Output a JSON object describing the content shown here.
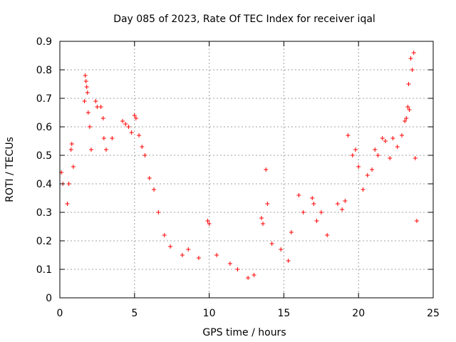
{
  "chart_data": {
    "type": "scatter",
    "title": "Day 085 of 2023, Rate Of TEC Index for receiver iqal",
    "xlabel": "GPS time / hours",
    "ylabel": "ROTI / TECUs",
    "xlim": [
      0,
      25
    ],
    "ylim": [
      0,
      0.9
    ],
    "xticks": [
      "0",
      "5",
      "10",
      "15",
      "20",
      "25"
    ],
    "yticks": [
      "0",
      "0.1",
      "0.2",
      "0.3",
      "0.4",
      "0.5",
      "0.6",
      "0.7",
      "0.8",
      "0.9"
    ],
    "grid": true,
    "legend": "none",
    "marker": "+",
    "marker_color": "#ff0000",
    "series": [
      {
        "points": [
          [
            0.1,
            0.44
          ],
          [
            0.2,
            0.4
          ],
          [
            0.5,
            0.33
          ],
          [
            0.6,
            0.4
          ],
          [
            0.75,
            0.52
          ],
          [
            0.8,
            0.54
          ],
          [
            0.9,
            0.46
          ],
          [
            1.7,
            0.78
          ],
          [
            1.75,
            0.76
          ],
          [
            1.8,
            0.74
          ],
          [
            1.85,
            0.72
          ],
          [
            1.65,
            0.69
          ],
          [
            1.9,
            0.65
          ],
          [
            2.0,
            0.6
          ],
          [
            2.1,
            0.52
          ],
          [
            2.4,
            0.69
          ],
          [
            2.5,
            0.67
          ],
          [
            2.75,
            0.67
          ],
          [
            2.9,
            0.63
          ],
          [
            2.95,
            0.56
          ],
          [
            3.1,
            0.52
          ],
          [
            3.5,
            0.56
          ],
          [
            4.2,
            0.62
          ],
          [
            4.4,
            0.61
          ],
          [
            4.6,
            0.6
          ],
          [
            4.8,
            0.58
          ],
          [
            5.0,
            0.64
          ],
          [
            5.1,
            0.63
          ],
          [
            5.3,
            0.57
          ],
          [
            5.5,
            0.53
          ],
          [
            5.7,
            0.5
          ],
          [
            6.0,
            0.42
          ],
          [
            6.3,
            0.38
          ],
          [
            6.6,
            0.3
          ],
          [
            7.0,
            0.22
          ],
          [
            7.4,
            0.18
          ],
          [
            8.2,
            0.15
          ],
          [
            8.6,
            0.17
          ],
          [
            9.3,
            0.14
          ],
          [
            9.9,
            0.27
          ],
          [
            10.0,
            0.26
          ],
          [
            10.5,
            0.15
          ],
          [
            11.4,
            0.12
          ],
          [
            11.9,
            0.1
          ],
          [
            12.6,
            0.07
          ],
          [
            13.0,
            0.08
          ],
          [
            13.5,
            0.28
          ],
          [
            13.6,
            0.26
          ],
          [
            13.8,
            0.45
          ],
          [
            13.9,
            0.33
          ],
          [
            14.2,
            0.19
          ],
          [
            14.8,
            0.17
          ],
          [
            15.3,
            0.13
          ],
          [
            15.5,
            0.23
          ],
          [
            16.0,
            0.36
          ],
          [
            16.3,
            0.3
          ],
          [
            16.9,
            0.35
          ],
          [
            17.0,
            0.33
          ],
          [
            17.2,
            0.27
          ],
          [
            17.5,
            0.3
          ],
          [
            17.9,
            0.22
          ],
          [
            18.6,
            0.33
          ],
          [
            18.9,
            0.31
          ],
          [
            19.1,
            0.34
          ],
          [
            19.3,
            0.57
          ],
          [
            19.6,
            0.5
          ],
          [
            19.8,
            0.52
          ],
          [
            20.0,
            0.46
          ],
          [
            20.3,
            0.38
          ],
          [
            20.6,
            0.43
          ],
          [
            20.9,
            0.45
          ],
          [
            21.1,
            0.52
          ],
          [
            21.3,
            0.5
          ],
          [
            21.6,
            0.56
          ],
          [
            21.8,
            0.55
          ],
          [
            22.1,
            0.49
          ],
          [
            22.3,
            0.56
          ],
          [
            22.6,
            0.53
          ],
          [
            22.9,
            0.57
          ],
          [
            23.1,
            0.62
          ],
          [
            23.2,
            0.63
          ],
          [
            23.3,
            0.67
          ],
          [
            23.35,
            0.75
          ],
          [
            23.4,
            0.66
          ],
          [
            23.5,
            0.84
          ],
          [
            23.6,
            0.8
          ],
          [
            23.7,
            0.86
          ],
          [
            23.8,
            0.49
          ],
          [
            23.9,
            0.27
          ]
        ]
      }
    ]
  }
}
